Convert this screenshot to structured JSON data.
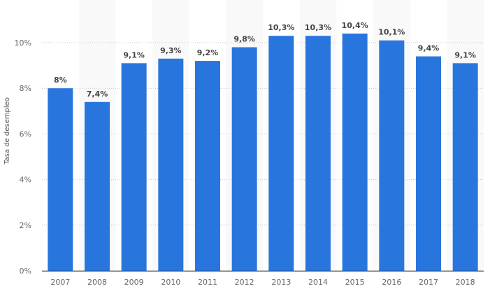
{
  "chart_data": {
    "type": "bar",
    "title": "",
    "xlabel": "",
    "ylabel": "Tasa de desempleo",
    "ylim": [
      0,
      10
    ],
    "yticks": [
      "0%",
      "2%",
      "4%",
      "6%",
      "8%",
      "10%"
    ],
    "ytick_values": [
      0,
      2,
      4,
      6,
      8,
      10
    ],
    "grid": true,
    "categories": [
      "2007",
      "2008",
      "2009",
      "2010",
      "2011",
      "2012",
      "2013",
      "2014",
      "2015",
      "2016",
      "2017",
      "2018"
    ],
    "values": [
      8,
      7.4,
      9.1,
      9.3,
      9.2,
      9.8,
      10.3,
      10.3,
      10.4,
      10.1,
      9.4,
      9.1
    ],
    "data_labels": [
      "8%",
      "7,4%",
      "9,1%",
      "9,3%",
      "9,2%",
      "9,8%",
      "10,3%",
      "10,3%",
      "10,4%",
      "10,1%",
      "9,4%",
      "9,1%"
    ],
    "colors": {
      "bar": "#2876dd",
      "band": "#f9f9f9",
      "grid": "#c8c8c8",
      "axis": "#222222"
    }
  }
}
